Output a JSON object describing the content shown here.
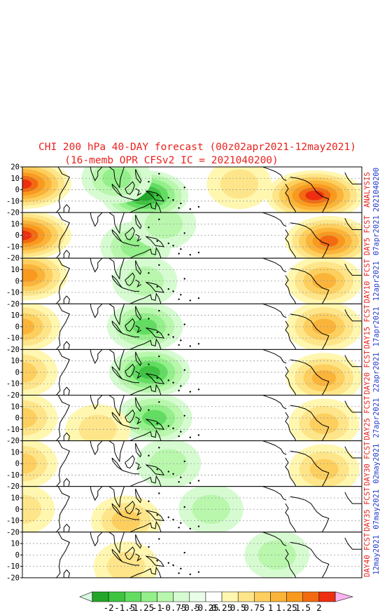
{
  "title": {
    "line1": "CHI 200 hPa 40-DAY forecast (00z02apr2021-12may2021)",
    "line2": "(16-memb OPR CFSv2 IC = 2021040200)"
  },
  "colors": {
    "title": "#e8221d",
    "right_label_red": "#e8221d",
    "right_label_blue": "#2239c9",
    "land": "#000000",
    "grid": "#9a9a9a"
  },
  "chart_data": {
    "type": "heatmap",
    "variable": "CHI 200 hPa",
    "ylim": [
      -20,
      20
    ],
    "y_ticks": [
      "20",
      "10",
      "0",
      "-10",
      "-20"
    ],
    "grid": true,
    "panels": [
      {
        "label_red": "ANALYSIS",
        "label_blue": "2021040200",
        "features": [
          {
            "kind": "positive",
            "lon": 0,
            "lat": 5,
            "amp": 2.0
          },
          {
            "kind": "positive",
            "lon": 310,
            "lat": -5,
            "amp": 2.0
          },
          {
            "kind": "negative",
            "lon": 130,
            "lat": -5,
            "amp": -1.5
          },
          {
            "kind": "negative",
            "lon": 100,
            "lat": 10,
            "amp": -0.75
          },
          {
            "kind": "positive",
            "lon": 230,
            "lat": 5,
            "amp": 0.5
          }
        ]
      },
      {
        "label_red": "DAY5 FCST",
        "label_blue": "07apr2021",
        "features": [
          {
            "kind": "positive",
            "lon": 0,
            "lat": 0,
            "amp": 2.0
          },
          {
            "kind": "positive",
            "lon": 325,
            "lat": -5,
            "amp": 1.5
          },
          {
            "kind": "negative",
            "lon": 120,
            "lat": -10,
            "amp": -0.75
          },
          {
            "kind": "negative",
            "lon": 150,
            "lat": 10,
            "amp": -0.5
          }
        ]
      },
      {
        "label_red": "DAY10 FCST",
        "label_blue": "12apr2021",
        "features": [
          {
            "kind": "positive",
            "lon": 5,
            "lat": 5,
            "amp": 1.25
          },
          {
            "kind": "positive",
            "lon": 320,
            "lat": 0,
            "amp": 1.0
          },
          {
            "kind": "negative",
            "lon": 130,
            "lat": 0,
            "amp": -0.5
          }
        ]
      },
      {
        "label_red": "DAY15 FCST",
        "label_blue": "17apr2021",
        "features": [
          {
            "kind": "positive",
            "lon": 0,
            "lat": 0,
            "amp": 1.0
          },
          {
            "kind": "positive",
            "lon": 320,
            "lat": 0,
            "amp": 1.0
          },
          {
            "kind": "negative",
            "lon": 130,
            "lat": 0,
            "amp": -1.0
          }
        ]
      },
      {
        "label_red": "DAY20 FCST",
        "label_blue": "22apr2021",
        "features": [
          {
            "kind": "positive",
            "lon": 0,
            "lat": 0,
            "amp": 0.75
          },
          {
            "kind": "positive",
            "lon": 320,
            "lat": -5,
            "amp": 1.0
          },
          {
            "kind": "negative",
            "lon": 135,
            "lat": 0,
            "amp": -1.25
          }
        ]
      },
      {
        "label_red": "DAY25 FCST",
        "label_blue": "27apr2021",
        "features": [
          {
            "kind": "positive",
            "lon": 0,
            "lat": 0,
            "amp": 0.75
          },
          {
            "kind": "positive",
            "lon": 320,
            "lat": -5,
            "amp": 0.75
          },
          {
            "kind": "negative",
            "lon": 140,
            "lat": 0,
            "amp": -1.0
          },
          {
            "kind": "positive",
            "lon": 80,
            "lat": -10,
            "amp": 0.5
          }
        ]
      },
      {
        "label_red": "DAY30 FCST",
        "label_blue": "02may2021",
        "features": [
          {
            "kind": "positive",
            "lon": 0,
            "lat": 0,
            "amp": 0.75
          },
          {
            "kind": "positive",
            "lon": 320,
            "lat": -5,
            "amp": 0.75
          },
          {
            "kind": "negative",
            "lon": 155,
            "lat": 0,
            "amp": -0.5
          }
        ]
      },
      {
        "label_red": "DAY35 FCST",
        "label_blue": "07may2021",
        "features": [
          {
            "kind": "positive",
            "lon": 0,
            "lat": 0,
            "amp": 0.5
          },
          {
            "kind": "positive",
            "lon": 110,
            "lat": -10,
            "amp": 0.75
          },
          {
            "kind": "negative",
            "lon": 200,
            "lat": 0,
            "amp": -0.5
          }
        ]
      },
      {
        "label_red": "DAY40 FCST",
        "label_blue": "12may2021",
        "features": [
          {
            "kind": "positive",
            "lon": 110,
            "lat": -10,
            "amp": 0.5
          },
          {
            "kind": "negative",
            "lon": 270,
            "lat": 0,
            "amp": -0.5
          }
        ]
      }
    ],
    "colorbar": {
      "labels": [
        "-2",
        "-1.5",
        "-1.25",
        "-1",
        "-0.75",
        "-0.5",
        "-0.25",
        "0.25",
        "0.5",
        "0.75",
        "1",
        "1.25",
        "1.5",
        "2"
      ],
      "levels": [
        -2,
        -1.5,
        -1.25,
        -1,
        -0.75,
        -0.5,
        -0.25,
        0.25,
        0.5,
        0.75,
        1,
        1.25,
        1.5,
        2
      ],
      "colors": [
        "#d7f9e1",
        "#23a629",
        "#3ec340",
        "#62dd62",
        "#94f08a",
        "#b9f7ad",
        "#d6fbd1",
        "#e9fde7",
        "#ffffff",
        "#fff7b0",
        "#fee58a",
        "#fdcf5e",
        "#fbb43a",
        "#f99a1f",
        "#f26a12",
        "#ee2e10",
        "#fbb3ef"
      ]
    }
  }
}
